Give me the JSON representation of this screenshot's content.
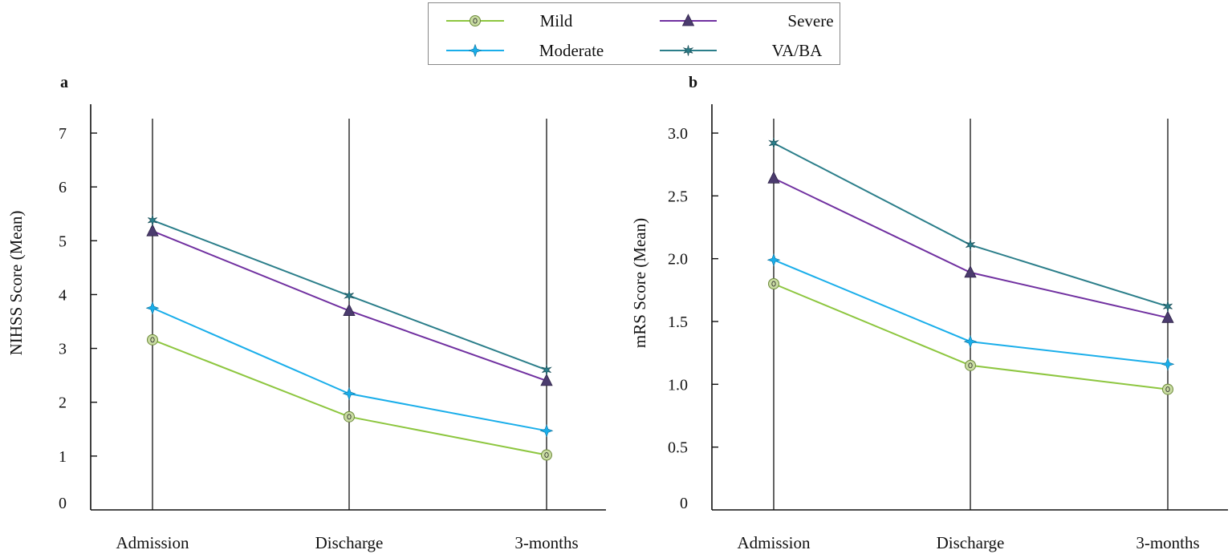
{
  "chart_data": [
    {
      "type": "line",
      "panel_label": "a",
      "title": "",
      "xlabel": "",
      "ylabel": "NIHSS Score (Mean)",
      "categories": [
        "Admission",
        "Discharge",
        "3-months"
      ],
      "ylim": [
        0,
        7
      ],
      "yticks": [
        "0",
        "1",
        "2",
        "3",
        "4",
        "5",
        "6",
        "7"
      ],
      "ytick_values": [
        0,
        1,
        2,
        3,
        4,
        5,
        6,
        7
      ],
      "grid": false,
      "series": [
        {
          "name": "Mild",
          "values": [
            3.16,
            1.73,
            1.02
          ]
        },
        {
          "name": "Moderate",
          "values": [
            3.75,
            2.16,
            1.47
          ]
        },
        {
          "name": "Severe",
          "values": [
            5.18,
            3.7,
            2.4
          ]
        },
        {
          "name": "VA/BA",
          "values": [
            5.38,
            3.98,
            2.6
          ]
        }
      ]
    },
    {
      "type": "line",
      "panel_label": "b",
      "title": "",
      "xlabel": "",
      "ylabel": "mRS Score (Mean)",
      "categories": [
        "Admission",
        "Discharge",
        "3-months"
      ],
      "ylim": [
        0,
        3
      ],
      "yticks": [
        "0",
        "0.5",
        "1.0",
        "1.5",
        "2.0",
        "2.5",
        "3.0"
      ],
      "ytick_values": [
        0,
        0.5,
        1.0,
        1.5,
        2.0,
        2.5,
        3.0
      ],
      "grid": false,
      "series": [
        {
          "name": "Mild",
          "values": [
            1.8,
            1.15,
            0.96
          ]
        },
        {
          "name": "Moderate",
          "values": [
            1.99,
            1.34,
            1.16
          ]
        },
        {
          "name": "Severe",
          "values": [
            2.64,
            1.89,
            1.53
          ]
        },
        {
          "name": "VA/BA",
          "values": [
            2.92,
            2.11,
            1.62
          ]
        }
      ]
    }
  ],
  "legend": {
    "placement": "top-center",
    "items": [
      {
        "name": "Mild",
        "marker": "circle-dot",
        "line_color": "#8dc63f",
        "marker_fill": "#c9dca2",
        "marker_stroke": "#6d8a3a"
      },
      {
        "name": "Severe",
        "marker": "triangle",
        "line_color": "#7030a0",
        "marker_fill": "#4b3b6e",
        "marker_stroke": "#2e2347"
      },
      {
        "name": "Moderate",
        "marker": "four-point-star",
        "line_color": "#1aaeea",
        "marker_fill": "#1aaeea",
        "marker_stroke": "#0b6f9a"
      },
      {
        "name": "VA/BA",
        "marker": "asterisk-star",
        "line_color": "#2b7e8a",
        "marker_fill": "#2b7e8a",
        "marker_stroke": "#1b4f58"
      }
    ]
  }
}
